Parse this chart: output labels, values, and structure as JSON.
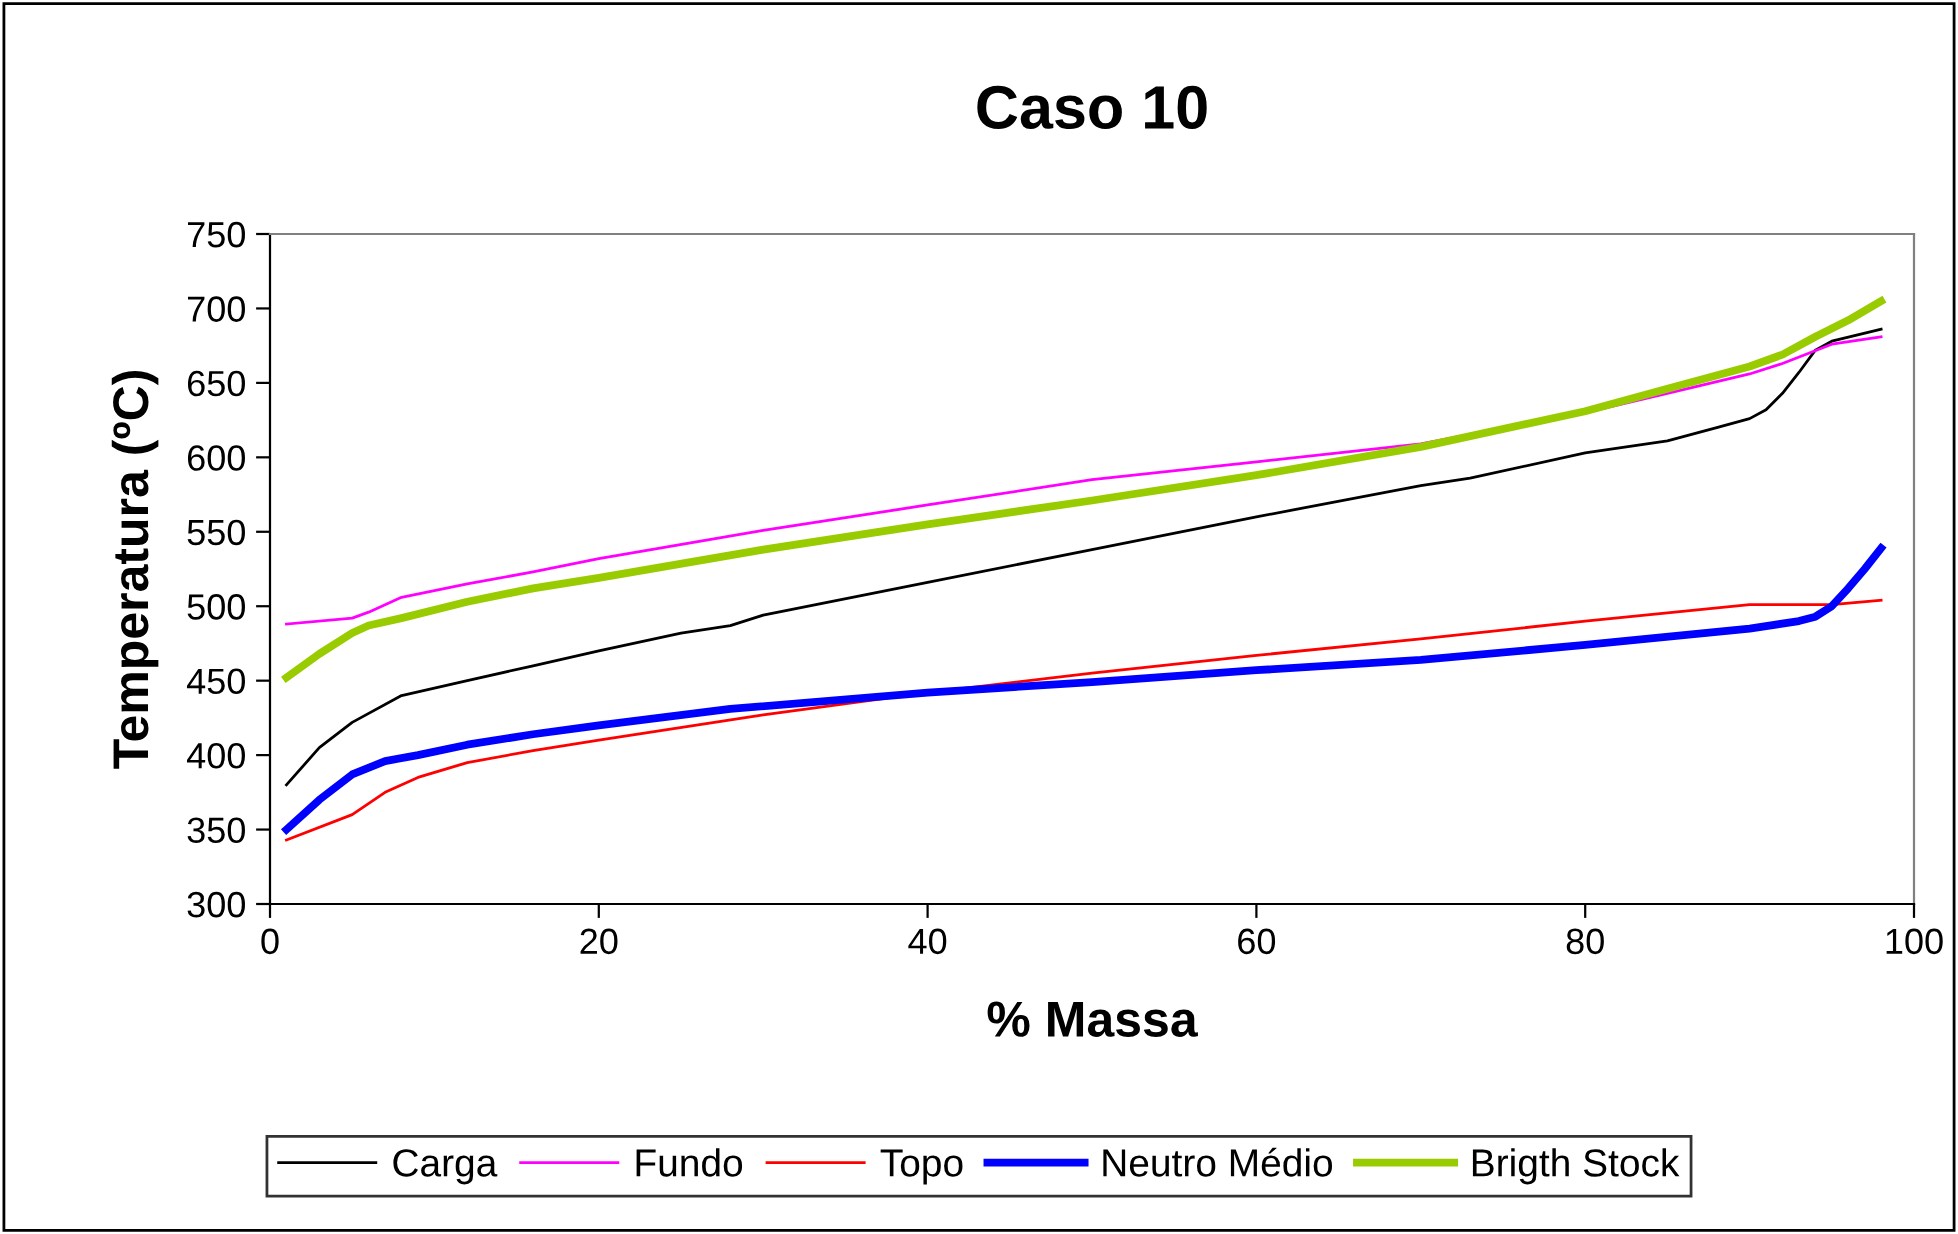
{
  "chart_data": {
    "type": "line",
    "title": "Caso 10",
    "xlabel": "% Massa",
    "ylabel": "Temperatura (ºC)",
    "xlim": [
      0,
      100
    ],
    "xticks": [
      0,
      20,
      40,
      60,
      80,
      100
    ],
    "ylim": [
      300,
      750
    ],
    "yticks": [
      300,
      350,
      400,
      450,
      500,
      550,
      600,
      650,
      700,
      750
    ],
    "grid": false,
    "legend": "bottom",
    "marker": "none",
    "line_style": "solid",
    "series": [
      {
        "name": "Carga",
        "color": "#000000",
        "x": [
          1,
          3,
          5,
          8,
          12,
          16,
          20,
          25,
          28,
          30,
          40,
          50,
          60,
          70,
          73,
          80,
          85,
          88,
          90,
          91,
          92,
          93,
          94,
          95,
          98
        ],
        "values": [
          380,
          405,
          422,
          440,
          450,
          460,
          470,
          482,
          487,
          494,
          516,
          538,
          560,
          581,
          586,
          603,
          611,
          620,
          626,
          632,
          643,
          657,
          672,
          678,
          686
        ]
      },
      {
        "name": "Fundo",
        "color": "#ff00ff",
        "x": [
          1,
          5,
          6,
          8,
          12,
          16,
          20,
          30,
          40,
          50,
          60,
          70,
          80,
          85,
          90,
          92,
          95,
          98
        ],
        "values": [
          488,
          492,
          496,
          506,
          515,
          523,
          532,
          551,
          568,
          585,
          597,
          609,
          630,
          643,
          656,
          663,
          676,
          681
        ]
      },
      {
        "name": "Topo",
        "color": "#ff0000",
        "x": [
          1,
          5,
          7,
          9,
          12,
          16,
          20,
          30,
          40,
          50,
          60,
          70,
          80,
          90,
          95,
          98
        ],
        "values": [
          343,
          360,
          375,
          385,
          395,
          403,
          410,
          427,
          442,
          455,
          467,
          478,
          490,
          501,
          501,
          504
        ]
      },
      {
        "name": "Neutro Médio",
        "color": "#0000ff",
        "x": [
          1,
          3,
          5,
          7,
          9,
          12,
          16,
          20,
          28,
          40,
          50,
          60,
          70,
          80,
          90,
          93,
          94,
          95,
          96,
          97,
          98
        ],
        "values": [
          350,
          370,
          387,
          396,
          400,
          407,
          414,
          420,
          431,
          442,
          449,
          457,
          464,
          474,
          485,
          490,
          493,
          500,
          512,
          525,
          539
        ]
      },
      {
        "name": "Brigth Stock",
        "color": "#99cc00",
        "x": [
          1,
          3,
          5,
          6,
          8,
          12,
          16,
          20,
          30,
          40,
          50,
          60,
          70,
          80,
          85,
          90,
          92,
          94,
          96,
          98
        ],
        "values": [
          452,
          468,
          482,
          487,
          492,
          503,
          512,
          519,
          538,
          555,
          571,
          588,
          607,
          631,
          646,
          661,
          669,
          681,
          692,
          705
        ]
      }
    ]
  }
}
